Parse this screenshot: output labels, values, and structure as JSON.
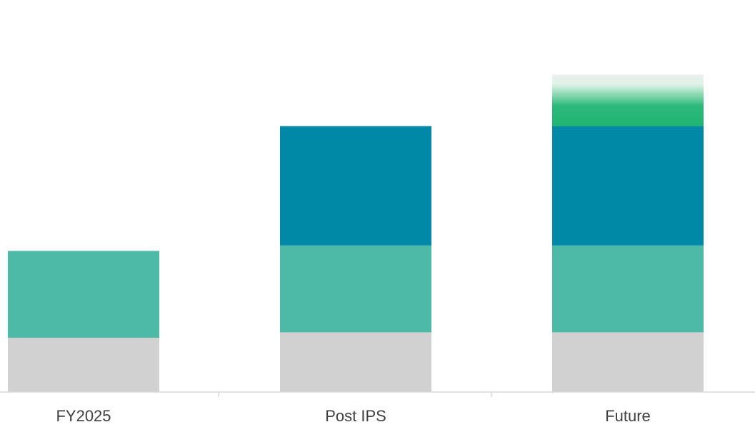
{
  "chart_data": {
    "type": "bar",
    "stacked": true,
    "title": "",
    "xlabel": "",
    "ylabel": "",
    "categories": [
      "FY2025",
      "Post IPS",
      "Future"
    ],
    "series": [
      {
        "values": [
          1.0,
          1.1,
          1.1
        ],
        "color": "#d2d1d1"
      },
      {
        "values": [
          1.6,
          1.6,
          1.6
        ],
        "color": "#4dbaa8"
      },
      {
        "values": [
          0,
          2.2,
          2.2
        ],
        "color": "#0089a6"
      },
      {
        "values": [
          0,
          0,
          0.95
        ],
        "color": "#21b574",
        "style": "gradient-fade"
      }
    ],
    "ylim": [
      0,
      6
    ],
    "y_axis_visible": false,
    "grid": false,
    "legend": "none"
  }
}
